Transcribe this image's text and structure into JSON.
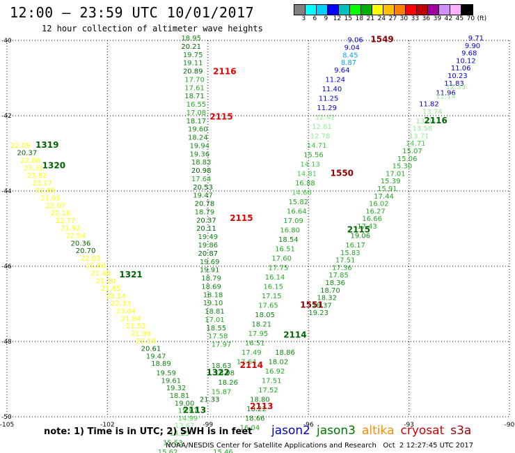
{
  "header": {
    "title": "12:00 – 23:59 UTC 10/01/2017",
    "subtitle": "12 hour collection of altimeter wave heights"
  },
  "colorbar": {
    "colors": [
      "#808080",
      "#00ffff",
      "#00d0ff",
      "#0000ff",
      "#00c0c0",
      "#00ff00",
      "#00b000",
      "#ffff00",
      "#ffc000",
      "#ff8000",
      "#ff0000",
      "#c00000",
      "#a000a0",
      "#d090ff",
      "#ffb0ff",
      "#000000"
    ],
    "labels": [
      "3",
      "6",
      "9",
      "12",
      "15",
      "18",
      "21",
      "24",
      "27",
      "30",
      "33",
      "36",
      "39",
      "42",
      "45",
      "70",
      "(ft)"
    ]
  },
  "axes": {
    "lat_labels": [
      "-40",
      "-42",
      "-44",
      "-46",
      "-48",
      "-50"
    ],
    "lon_labels": [
      "-105",
      "-102",
      "-99",
      "-96",
      "-93",
      "-90"
    ]
  },
  "tracks": [
    {
      "label": "1549",
      "color": "#8b0000",
      "lon": -93.8,
      "lat": -40.05
    },
    {
      "label": "2116",
      "color": "#dd0000",
      "lon": -98.5,
      "lat": -40.9
    },
    {
      "label": "2115",
      "color": "#dd0000",
      "lon": -98.6,
      "lat": -42.1
    },
    {
      "label": "1319",
      "color": "#006400",
      "lon": -103.8,
      "lat": -42.85
    },
    {
      "label": "1320",
      "color": "#006400",
      "lon": -103.6,
      "lat": -43.4
    },
    {
      "label": "1550",
      "color": "#8b0000",
      "lon": -95.0,
      "lat": -43.6
    },
    {
      "label": "2115",
      "color": "#dd0000",
      "lon": -98.0,
      "lat": -44.8
    },
    {
      "label": "2115",
      "color": "#006400",
      "lon": -94.5,
      "lat": -45.1
    },
    {
      "label": "2116",
      "color": "#006400",
      "lon": -92.2,
      "lat": -42.2
    },
    {
      "label": "1321",
      "color": "#006400",
      "lon": -101.3,
      "lat": -46.3
    },
    {
      "label": "1551",
      "color": "#8b0000",
      "lon": -95.9,
      "lat": -47.1
    },
    {
      "label": "2114",
      "color": "#006400",
      "lon": -96.4,
      "lat": -47.9
    },
    {
      "label": "2114",
      "color": "#dd0000",
      "lon": -97.7,
      "lat": -48.7
    },
    {
      "label": "1322",
      "color": "#006400",
      "lon": -98.7,
      "lat": -48.9
    },
    {
      "label": "2113",
      "color": "#006400",
      "lon": -99.4,
      "lat": -49.9
    },
    {
      "label": "2113",
      "color": "#dd0000",
      "lon": -97.4,
      "lat": -49.8
    }
  ],
  "readings": [
    {
      "v": "9.06",
      "c": "#0000cc",
      "lon": -94.6,
      "lat": -40.05
    },
    {
      "v": "9.04",
      "c": "#0000cc",
      "lon": -94.7,
      "lat": -40.25
    },
    {
      "v": "8.45",
      "c": "#00a0ff",
      "lon": -94.75,
      "lat": -40.45
    },
    {
      "v": "8.87",
      "c": "#00a0ff",
      "lon": -94.8,
      "lat": -40.65
    },
    {
      "v": "9.64",
      "c": "#0000cc",
      "lon": -95.0,
      "lat": -40.85
    },
    {
      "v": "11.24",
      "c": "#0000cc",
      "lon": -95.2,
      "lat": -41.1
    },
    {
      "v": "11.40",
      "c": "#0000cc",
      "lon": -95.3,
      "lat": -41.35
    },
    {
      "v": "11.25",
      "c": "#0000cc",
      "lon": -95.4,
      "lat": -41.6
    },
    {
      "v": "11.29",
      "c": "#0000cc",
      "lon": -95.45,
      "lat": -41.85
    },
    {
      "v": "12.42",
      "c": "#90ee90",
      "lon": -95.5,
      "lat": -42.1
    },
    {
      "v": "12.61",
      "c": "#90ee90",
      "lon": -95.6,
      "lat": -42.35
    },
    {
      "v": "12.78",
      "c": "#90ee90",
      "lon": -95.65,
      "lat": -42.6
    },
    {
      "v": "14.71",
      "c": "#44cc44",
      "lon": -95.75,
      "lat": -42.85
    },
    {
      "v": "15.56",
      "c": "#22aa22",
      "lon": -95.85,
      "lat": -43.1
    },
    {
      "v": "14.13",
      "c": "#44cc44",
      "lon": -95.95,
      "lat": -43.35
    },
    {
      "v": "14.81",
      "c": "#44cc44",
      "lon": -96.05,
      "lat": -43.6
    },
    {
      "v": "16.88",
      "c": "#22aa22",
      "lon": -96.1,
      "lat": -43.85
    },
    {
      "v": "14.66",
      "c": "#44cc44",
      "lon": -96.2,
      "lat": -44.1
    },
    {
      "v": "15.82",
      "c": "#22aa22",
      "lon": -96.3,
      "lat": -44.35
    },
    {
      "v": "16.64",
      "c": "#22aa22",
      "lon": -96.35,
      "lat": -44.6
    },
    {
      "v": "17.09",
      "c": "#22aa22",
      "lon": -96.45,
      "lat": -44.85
    },
    {
      "v": "16.80",
      "c": "#22aa22",
      "lon": -96.55,
      "lat": -45.1
    },
    {
      "v": "18.54",
      "c": "#118811",
      "lon": -96.6,
      "lat": -45.35
    },
    {
      "v": "16.51",
      "c": "#22aa22",
      "lon": -96.7,
      "lat": -45.6
    },
    {
      "v": "17.60",
      "c": "#22aa22",
      "lon": -96.8,
      "lat": -45.85
    },
    {
      "v": "17.75",
      "c": "#22aa22",
      "lon": -96.9,
      "lat": -46.1
    },
    {
      "v": "16.14",
      "c": "#22aa22",
      "lon": -97.0,
      "lat": -46.35
    },
    {
      "v": "16.15",
      "c": "#22aa22",
      "lon": -97.05,
      "lat": -46.6
    },
    {
      "v": "17.15",
      "c": "#22aa22",
      "lon": -97.1,
      "lat": -46.85
    },
    {
      "v": "17.65",
      "c": "#22aa22",
      "lon": -97.2,
      "lat": -47.1
    },
    {
      "v": "18.05",
      "c": "#118811",
      "lon": -97.3,
      "lat": -47.35
    },
    {
      "v": "18.21",
      "c": "#118811",
      "lon": -97.4,
      "lat": -47.6
    },
    {
      "v": "17.95",
      "c": "#22aa22",
      "lon": -97.5,
      "lat": -47.85
    },
    {
      "v": "16.51",
      "c": "#22aa22",
      "lon": -97.6,
      "lat": -48.1
    },
    {
      "v": "17.49",
      "c": "#22aa22",
      "lon": -97.7,
      "lat": -48.35
    },
    {
      "v": "17.64",
      "c": "#22aa22",
      "lon": -97.85,
      "lat": -48.6
    },
    {
      "v": "9.71",
      "c": "#0000cc",
      "lon": -91.0,
      "lat": -40.0
    },
    {
      "v": "9.90",
      "c": "#0000cc",
      "lon": -91.1,
      "lat": -40.2
    },
    {
      "v": "9.68",
      "c": "#0000cc",
      "lon": -91.2,
      "lat": -40.4
    },
    {
      "v": "10.12",
      "c": "#0000cc",
      "lon": -91.3,
      "lat": -40.6
    },
    {
      "v": "11.06",
      "c": "#0000cc",
      "lon": -91.45,
      "lat": -40.8
    },
    {
      "v": "10.23",
      "c": "#0000cc",
      "lon": -91.55,
      "lat": -41.0
    },
    {
      "v": "11.83",
      "c": "#0000cc",
      "lon": -91.65,
      "lat": -41.2
    },
    {
      "v": "11.96",
      "c": "#0000cc",
      "lon": -91.9,
      "lat": -41.45
    },
    {
      "v": "11.82",
      "c": "#0000cc",
      "lon": -92.4,
      "lat": -41.75
    },
    {
      "v": "12.33",
      "c": "#90ee90",
      "lon": -91.6,
      "lat": -41.3
    },
    {
      "v": "12.14",
      "c": "#90ee90",
      "lon": -91.9,
      "lat": -41.55
    },
    {
      "v": "13.74",
      "c": "#90ee90",
      "lon": -92.3,
      "lat": -41.95
    },
    {
      "v": "13.04",
      "c": "#90ee90",
      "lon": -92.5,
      "lat": -42.2
    },
    {
      "v": "13.58",
      "c": "#90ee90",
      "lon": -92.6,
      "lat": -42.4
    },
    {
      "v": "13.71",
      "c": "#90ee90",
      "lon": -92.7,
      "lat": -42.6
    },
    {
      "v": "14.71",
      "c": "#44cc44",
      "lon": -92.8,
      "lat": -42.8
    },
    {
      "v": "15.07",
      "c": "#22aa22",
      "lon": -92.9,
      "lat": -43.0
    },
    {
      "v": "15.06",
      "c": "#22aa22",
      "lon": -93.05,
      "lat": -43.2
    },
    {
      "v": "15.30",
      "c": "#22aa22",
      "lon": -93.2,
      "lat": -43.4
    },
    {
      "v": "17.01",
      "c": "#22aa22",
      "lon": -93.4,
      "lat": -43.6
    },
    {
      "v": "15.39",
      "c": "#22aa22",
      "lon": -93.55,
      "lat": -43.8
    },
    {
      "v": "15.91",
      "c": "#22aa22",
      "lon": -93.65,
      "lat": -44.0
    },
    {
      "v": "17.44",
      "c": "#22aa22",
      "lon": -93.75,
      "lat": -44.2
    },
    {
      "v": "16.02",
      "c": "#22aa22",
      "lon": -93.9,
      "lat": -44.4
    },
    {
      "v": "16.27",
      "c": "#22aa22",
      "lon": -94.0,
      "lat": -44.6
    },
    {
      "v": "16.66",
      "c": "#22aa22",
      "lon": -94.1,
      "lat": -44.8
    },
    {
      "v": "17.43",
      "c": "#22aa22",
      "lon": -94.25,
      "lat": -45.0
    },
    {
      "v": "19.06",
      "c": "#118811",
      "lon": -94.45,
      "lat": -45.25
    },
    {
      "v": "16.17",
      "c": "#22aa22",
      "lon": -94.6,
      "lat": -45.5
    },
    {
      "v": "15.83",
      "c": "#22aa22",
      "lon": -94.75,
      "lat": -45.7
    },
    {
      "v": "17.51",
      "c": "#22aa22",
      "lon": -94.9,
      "lat": -45.9
    },
    {
      "v": "17.36",
      "c": "#22aa22",
      "lon": -95.0,
      "lat": -46.1
    },
    {
      "v": "17.85",
      "c": "#22aa22",
      "lon": -95.1,
      "lat": -46.3
    },
    {
      "v": "18.36",
      "c": "#118811",
      "lon": -95.2,
      "lat": -46.5
    },
    {
      "v": "18.70",
      "c": "#118811",
      "lon": -95.35,
      "lat": -46.7
    },
    {
      "v": "18.32",
      "c": "#118811",
      "lon": -95.45,
      "lat": -46.9
    },
    {
      "v": "18.37",
      "c": "#118811",
      "lon": -95.6,
      "lat": -47.1
    },
    {
      "v": "19.23",
      "c": "#118811",
      "lon": -95.7,
      "lat": -47.3
    },
    {
      "v": "18.86",
      "c": "#118811",
      "lon": -96.7,
      "lat": -48.35
    },
    {
      "v": "18.02",
      "c": "#118811",
      "lon": -96.9,
      "lat": -48.6
    },
    {
      "v": "16.92",
      "c": "#22aa22",
      "lon": -97.0,
      "lat": -48.85
    },
    {
      "v": "17.51",
      "c": "#22aa22",
      "lon": -97.1,
      "lat": -49.1
    },
    {
      "v": "17.52",
      "c": "#22aa22",
      "lon": -97.2,
      "lat": -49.35
    },
    {
      "v": "18.80",
      "c": "#118811",
      "lon": -97.45,
      "lat": -49.6
    },
    {
      "v": "18.22",
      "c": "#118811",
      "lon": -97.55,
      "lat": -49.85
    },
    {
      "v": "18.66",
      "c": "#118811",
      "lon": -97.6,
      "lat": -50.1
    },
    {
      "v": "16.04",
      "c": "#22aa22",
      "lon": -97.75,
      "lat": -50.35
    },
    {
      "v": "18.95",
      "c": "#118811",
      "lon": -99.5,
      "lat": -40.0
    },
    {
      "v": "20.21",
      "c": "#006400",
      "lon": -99.5,
      "lat": -40.22
    },
    {
      "v": "19.75",
      "c": "#118811",
      "lon": -99.45,
      "lat": -40.44
    },
    {
      "v": "19.11",
      "c": "#118811",
      "lon": -99.45,
      "lat": -40.66
    },
    {
      "v": "20.89",
      "c": "#006400",
      "lon": -99.45,
      "lat": -40.88
    },
    {
      "v": "17.70",
      "c": "#22aa22",
      "lon": -99.4,
      "lat": -41.1
    },
    {
      "v": "17.61",
      "c": "#22aa22",
      "lon": -99.4,
      "lat": -41.32
    },
    {
      "v": "18.71",
      "c": "#118811",
      "lon": -99.4,
      "lat": -41.54
    },
    {
      "v": "16.55",
      "c": "#22aa22",
      "lon": -99.35,
      "lat": -41.76
    },
    {
      "v": "17.08",
      "c": "#22aa22",
      "lon": -99.35,
      "lat": -41.98
    },
    {
      "v": "18.17",
      "c": "#118811",
      "lon": -99.35,
      "lat": -42.2
    },
    {
      "v": "19.60",
      "c": "#118811",
      "lon": -99.3,
      "lat": -42.42
    },
    {
      "v": "18.24",
      "c": "#118811",
      "lon": -99.3,
      "lat": -42.64
    },
    {
      "v": "19.94",
      "c": "#118811",
      "lon": -99.25,
      "lat": -42.86
    },
    {
      "v": "19.36",
      "c": "#118811",
      "lon": -99.25,
      "lat": -43.08
    },
    {
      "v": "18.83",
      "c": "#118811",
      "lon": -99.2,
      "lat": -43.3
    },
    {
      "v": "20.98",
      "c": "#006400",
      "lon": -99.2,
      "lat": -43.52
    },
    {
      "v": "17.64",
      "c": "#22aa22",
      "lon": -99.2,
      "lat": -43.74
    },
    {
      "v": "20.53",
      "c": "#006400",
      "lon": -99.15,
      "lat": -43.96
    },
    {
      "v": "19.47",
      "c": "#118811",
      "lon": -99.15,
      "lat": -44.18
    },
    {
      "v": "20.78",
      "c": "#006400",
      "lon": -99.1,
      "lat": -44.4
    },
    {
      "v": "18.79",
      "c": "#118811",
      "lon": -99.1,
      "lat": -44.62
    },
    {
      "v": "20.37",
      "c": "#006400",
      "lon": -99.05,
      "lat": -44.84
    },
    {
      "v": "20.11",
      "c": "#006400",
      "lon": -99.05,
      "lat": -45.06
    },
    {
      "v": "19.49",
      "c": "#118811",
      "lon": -99.0,
      "lat": -45.28
    },
    {
      "v": "19.86",
      "c": "#118811",
      "lon": -99.0,
      "lat": -45.5
    },
    {
      "v": "20.87",
      "c": "#006400",
      "lon": -99.0,
      "lat": -45.72
    },
    {
      "v": "19.69",
      "c": "#118811",
      "lon": -98.95,
      "lat": -45.94
    },
    {
      "v": "19.91",
      "c": "#118811",
      "lon": -98.95,
      "lat": -46.16
    },
    {
      "v": "18.79",
      "c": "#118811",
      "lon": -98.9,
      "lat": -46.38
    },
    {
      "v": "18.69",
      "c": "#118811",
      "lon": -98.9,
      "lat": -46.6
    },
    {
      "v": "18.18",
      "c": "#118811",
      "lon": -98.85,
      "lat": -46.82
    },
    {
      "v": "19.10",
      "c": "#118811",
      "lon": -98.85,
      "lat": -47.04
    },
    {
      "v": "18.81",
      "c": "#118811",
      "lon": -98.8,
      "lat": -47.26
    },
    {
      "v": "17.01",
      "c": "#22aa22",
      "lon": -98.8,
      "lat": -47.48
    },
    {
      "v": "18.55",
      "c": "#118811",
      "lon": -98.75,
      "lat": -47.7
    },
    {
      "v": "17.58",
      "c": "#22aa22",
      "lon": -98.7,
      "lat": -47.92
    },
    {
      "v": "17.97",
      "c": "#22aa22",
      "lon": -98.6,
      "lat": -48.14
    },
    {
      "v": "18.63",
      "c": "#118811",
      "lon": -98.6,
      "lat": -48.7
    },
    {
      "v": "18.98",
      "c": "#118811",
      "lon": -98.5,
      "lat": -48.9
    },
    {
      "v": "18.26",
      "c": "#118811",
      "lon": -98.4,
      "lat": -49.15
    },
    {
      "v": "15.87",
      "c": "#22aa22",
      "lon": -98.6,
      "lat": -49.4
    },
    {
      "v": "21.33",
      "c": "#006400",
      "lon": -98.95,
      "lat": -49.6
    },
    {
      "v": "22.09",
      "c": "#ffff00",
      "lon": -104.6,
      "lat": -42.85
    },
    {
      "v": "20.37",
      "c": "#006400",
      "lon": -104.4,
      "lat": -43.05
    },
    {
      "v": "22.88",
      "c": "#ffff00",
      "lon": -104.3,
      "lat": -43.25
    },
    {
      "v": "23.31",
      "c": "#ffff00",
      "lon": -104.2,
      "lat": -43.45
    },
    {
      "v": "23.82",
      "c": "#ffff00",
      "lon": -104.1,
      "lat": -43.65
    },
    {
      "v": "23.17",
      "c": "#ffff00",
      "lon": -103.95,
      "lat": -43.85
    },
    {
      "v": "22.89",
      "c": "#ffff00",
      "lon": -103.85,
      "lat": -44.05
    },
    {
      "v": "21.65",
      "c": "#ffff00",
      "lon": -103.7,
      "lat": -44.25
    },
    {
      "v": "22.07",
      "c": "#ffff00",
      "lon": -103.55,
      "lat": -44.45
    },
    {
      "v": "22.18",
      "c": "#ffff00",
      "lon": -103.4,
      "lat": -44.65
    },
    {
      "v": "22.77",
      "c": "#ffff00",
      "lon": -103.25,
      "lat": -44.85
    },
    {
      "v": "21.92",
      "c": "#ffff00",
      "lon": -103.1,
      "lat": -45.05
    },
    {
      "v": "22.54",
      "c": "#ffff00",
      "lon": -102.95,
      "lat": -45.25
    },
    {
      "v": "20.36",
      "c": "#006400",
      "lon": -102.8,
      "lat": -45.45
    },
    {
      "v": "20.70",
      "c": "#006400",
      "lon": -102.65,
      "lat": -45.65
    },
    {
      "v": "22.03",
      "c": "#ffff00",
      "lon": -102.5,
      "lat": -45.85
    },
    {
      "v": "21.80",
      "c": "#ffff00",
      "lon": -102.35,
      "lat": -46.05
    },
    {
      "v": "21.40",
      "c": "#ffff00",
      "lon": -102.2,
      "lat": -46.25
    },
    {
      "v": "21.20",
      "c": "#ffff00",
      "lon": -102.05,
      "lat": -46.45
    },
    {
      "v": "21.65",
      "c": "#ffff00",
      "lon": -101.9,
      "lat": -46.65
    },
    {
      "v": "23.14",
      "c": "#ffff00",
      "lon": -101.75,
      "lat": -46.85
    },
    {
      "v": "22.33",
      "c": "#ffff00",
      "lon": -101.6,
      "lat": -47.05
    },
    {
      "v": "23.04",
      "c": "#ffff00",
      "lon": -101.45,
      "lat": -47.25
    },
    {
      "v": "21.84",
      "c": "#ffff00",
      "lon": -101.3,
      "lat": -47.45
    },
    {
      "v": "21.53",
      "c": "#ffff00",
      "lon": -101.15,
      "lat": -47.65
    },
    {
      "v": "21.99",
      "c": "#ffff00",
      "lon": -101.0,
      "lat": -47.85
    },
    {
      "v": "22.18",
      "c": "#ffff00",
      "lon": -100.85,
      "lat": -48.05
    },
    {
      "v": "20.61",
      "c": "#006400",
      "lon": -100.7,
      "lat": -48.25
    },
    {
      "v": "19.47",
      "c": "#118811",
      "lon": -100.55,
      "lat": -48.45
    },
    {
      "v": "18.89",
      "c": "#118811",
      "lon": -100.4,
      "lat": -48.65
    },
    {
      "v": "19.59",
      "c": "#118811",
      "lon": -100.25,
      "lat": -48.9
    },
    {
      "v": "19.61",
      "c": "#118811",
      "lon": -100.1,
      "lat": -49.1
    },
    {
      "v": "19.32",
      "c": "#118811",
      "lon": -99.95,
      "lat": -49.3
    },
    {
      "v": "18.81",
      "c": "#118811",
      "lon": -99.85,
      "lat": -49.5
    },
    {
      "v": "19.00",
      "c": "#118811",
      "lon": -99.7,
      "lat": -49.7
    },
    {
      "v": "15.97",
      "c": "#22aa22",
      "lon": -99.6,
      "lat": -49.9
    },
    {
      "v": "14.99",
      "c": "#44cc44",
      "lon": -99.6,
      "lat": -50.1
    },
    {
      "v": "13.67",
      "c": "#90ee90",
      "lon": -99.7,
      "lat": -50.3
    },
    {
      "v": "14.25",
      "c": "#44cc44",
      "lon": -99.85,
      "lat": -50.5
    },
    {
      "v": "15.53",
      "c": "#22aa22",
      "lon": -100.05,
      "lat": -50.75
    },
    {
      "v": "15.62",
      "c": "#22aa22",
      "lon": -100.2,
      "lat": -51.0
    },
    {
      "v": "15.46",
      "c": "#22aa22",
      "lon": -98.55,
      "lat": -51.0
    }
  ],
  "note": "note: 1) Time is in UTC; 2) SWH is in feet",
  "legend": [
    {
      "name": "jason2",
      "color": "#0000cc"
    },
    {
      "name": "jason3",
      "color": "#007700"
    },
    {
      "name": "altika",
      "color": "#ff8c00"
    },
    {
      "name": "cryosat",
      "color": "#cc0000"
    },
    {
      "name": "s3a",
      "color": "#990000"
    }
  ],
  "footer": "NOAA/NESDIS Center for Satellite Applications and Research   Oct  2 12:27:45 UTC 2017"
}
